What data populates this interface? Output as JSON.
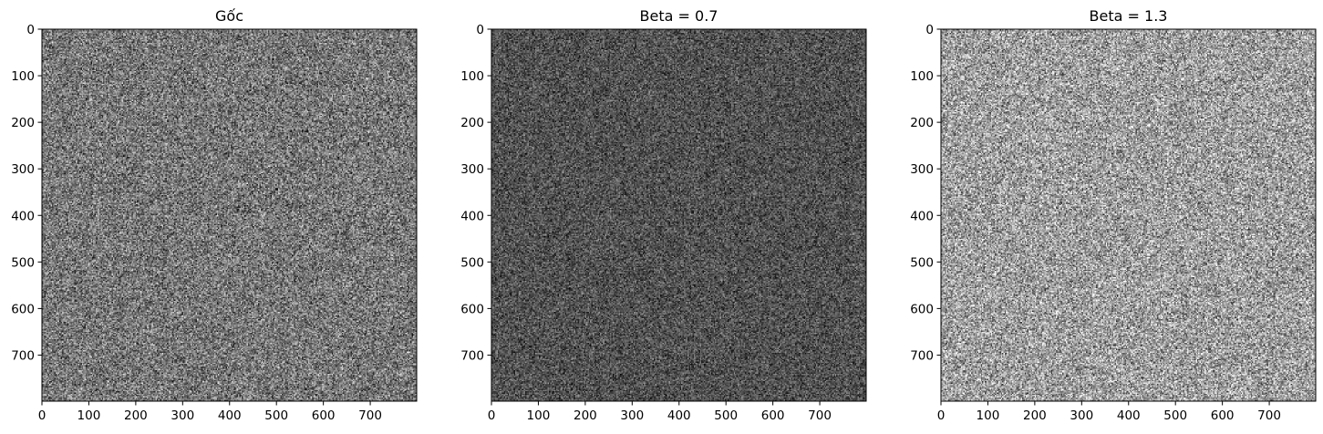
{
  "chart_data": [
    {
      "type": "heatmap",
      "title": "Gốc",
      "colormap": "gray",
      "noise_brightness": 0.47,
      "noise_contrast": 0.3,
      "xlim": [
        0,
        799
      ],
      "ylim": [
        799,
        0
      ],
      "xticks": [
        0,
        100,
        200,
        300,
        400,
        500,
        600,
        700
      ],
      "yticks": [
        0,
        100,
        200,
        300,
        400,
        500,
        600,
        700
      ]
    },
    {
      "type": "heatmap",
      "title": "Beta = 0.7",
      "colormap": "gray",
      "noise_brightness": 0.32,
      "noise_contrast": 0.22,
      "xlim": [
        0,
        799
      ],
      "ylim": [
        799,
        0
      ],
      "xticks": [
        0,
        100,
        200,
        300,
        400,
        500,
        600,
        700
      ],
      "yticks": [
        0,
        100,
        200,
        300,
        400,
        500,
        600,
        700
      ]
    },
    {
      "type": "heatmap",
      "title": "Beta = 1.3",
      "colormap": "gray",
      "noise_brightness": 0.62,
      "noise_contrast": 0.34,
      "xlim": [
        0,
        799
      ],
      "ylim": [
        799,
        0
      ],
      "xticks": [
        0,
        100,
        200,
        300,
        400,
        500,
        600,
        700
      ],
      "yticks": [
        0,
        100,
        200,
        300,
        400,
        500,
        600,
        700
      ]
    }
  ]
}
